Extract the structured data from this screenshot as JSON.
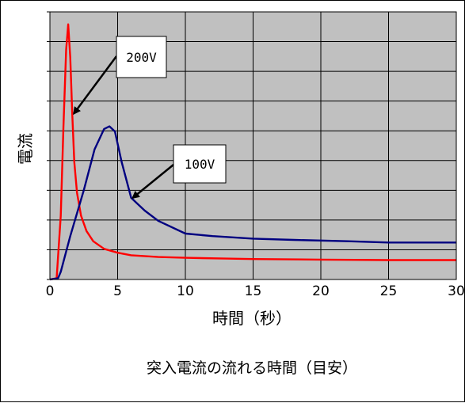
{
  "chart_data": {
    "type": "line",
    "xlabel": "時間（秒）",
    "ylabel": "電流",
    "caption": "突入電流の流れる時間（目安）",
    "xlim": [
      0,
      30
    ],
    "xticks": [
      0,
      5,
      10,
      15,
      20,
      25,
      30
    ],
    "ylim": [
      0,
      10
    ],
    "grid": true,
    "legend": "none",
    "background": "#c0c0c0",
    "series": [
      {
        "name": "200V",
        "color": "#ff0000",
        "x": [
          0,
          0.5,
          0.8,
          1.0,
          1.2,
          1.35,
          1.5,
          1.65,
          1.8,
          2.0,
          2.3,
          2.7,
          3.2,
          4.0,
          5.0,
          6.0,
          8.0,
          10.0,
          13.0,
          15.0,
          20.0,
          25.0,
          30.0
        ],
        "y": [
          0,
          0.05,
          2.5,
          6.0,
          9.0,
          10.0,
          8.7,
          6.5,
          4.6,
          3.4,
          2.5,
          1.9,
          1.5,
          1.2,
          1.05,
          0.95,
          0.88,
          0.85,
          0.82,
          0.8,
          0.78,
          0.76,
          0.76
        ]
      },
      {
        "name": "100V",
        "color": "#000080",
        "x": [
          0,
          0.6,
          0.8,
          1.5,
          2.5,
          3.3,
          4.0,
          4.4,
          4.8,
          5.3,
          6.0,
          7.0,
          8.0,
          10.0,
          12.0,
          15.0,
          18.0,
          22.0,
          25.0,
          28.0,
          30.0
        ],
        "y": [
          0,
          0.05,
          0.3,
          1.7,
          3.5,
          5.1,
          5.9,
          6.0,
          5.8,
          4.6,
          3.2,
          2.7,
          2.3,
          1.8,
          1.7,
          1.6,
          1.55,
          1.5,
          1.45,
          1.45,
          1.45
        ]
      }
    ],
    "annotations": [
      {
        "text": "200V",
        "series": "200V",
        "x": 1.65,
        "y": 6.5
      },
      {
        "text": "100V",
        "series": "100V",
        "x": 6.0,
        "y": 3.2
      }
    ]
  }
}
